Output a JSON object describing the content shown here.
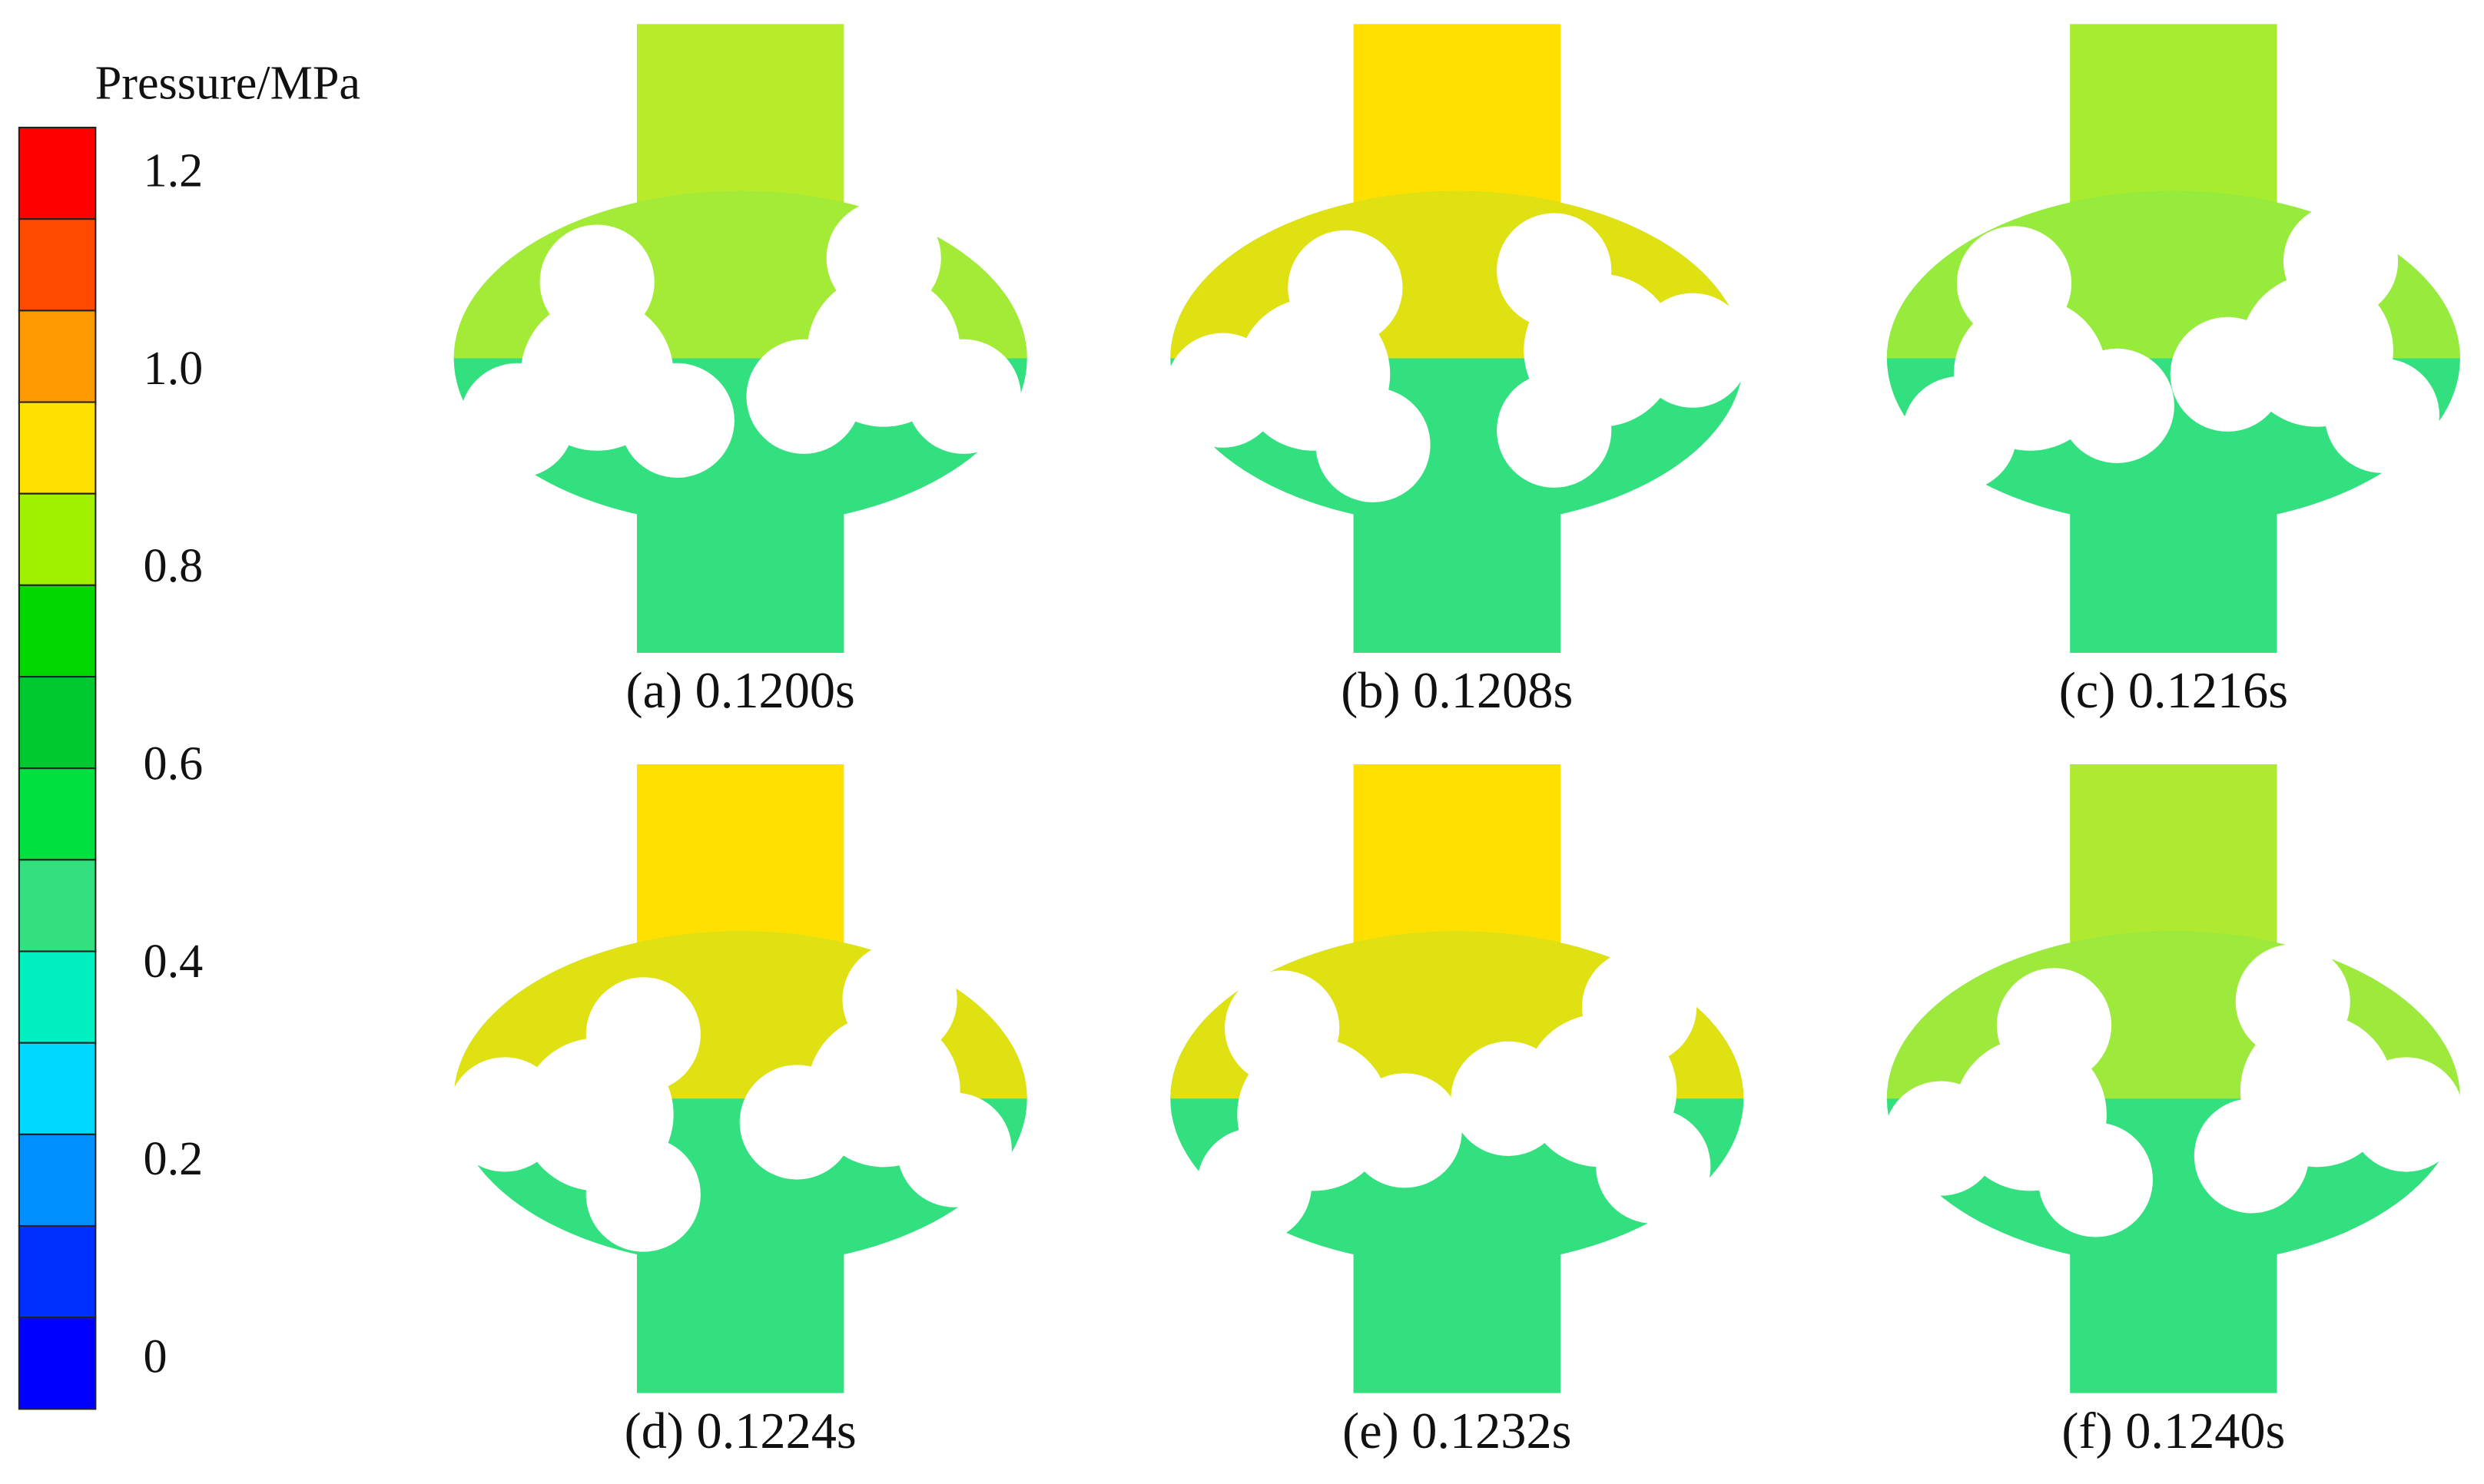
{
  "colorbar": {
    "title": "Pressure/MPa",
    "labels": [
      "1.2",
      "1.0",
      "0.8",
      "0.6",
      "0.4",
      "0.2",
      "0"
    ],
    "colors": [
      "#ff0000",
      "#ff4a00",
      "#ff9900",
      "#ffe000",
      "#a0f000",
      "#00d800",
      "#00c830",
      "#00e040",
      "#33e080",
      "#00f0c0",
      "#00d8ff",
      "#0090ff",
      "#0030ff",
      "#0000ff"
    ]
  },
  "panels": [
    {
      "caption": "(a) 0.1200s"
    },
    {
      "caption": "(b) 0.1208s"
    },
    {
      "caption": "(c) 0.1216s"
    },
    {
      "caption": "(d) 0.1224s"
    },
    {
      "caption": "(e) 0.1232s"
    },
    {
      "caption": "(f) 0.1240s"
    }
  ]
}
